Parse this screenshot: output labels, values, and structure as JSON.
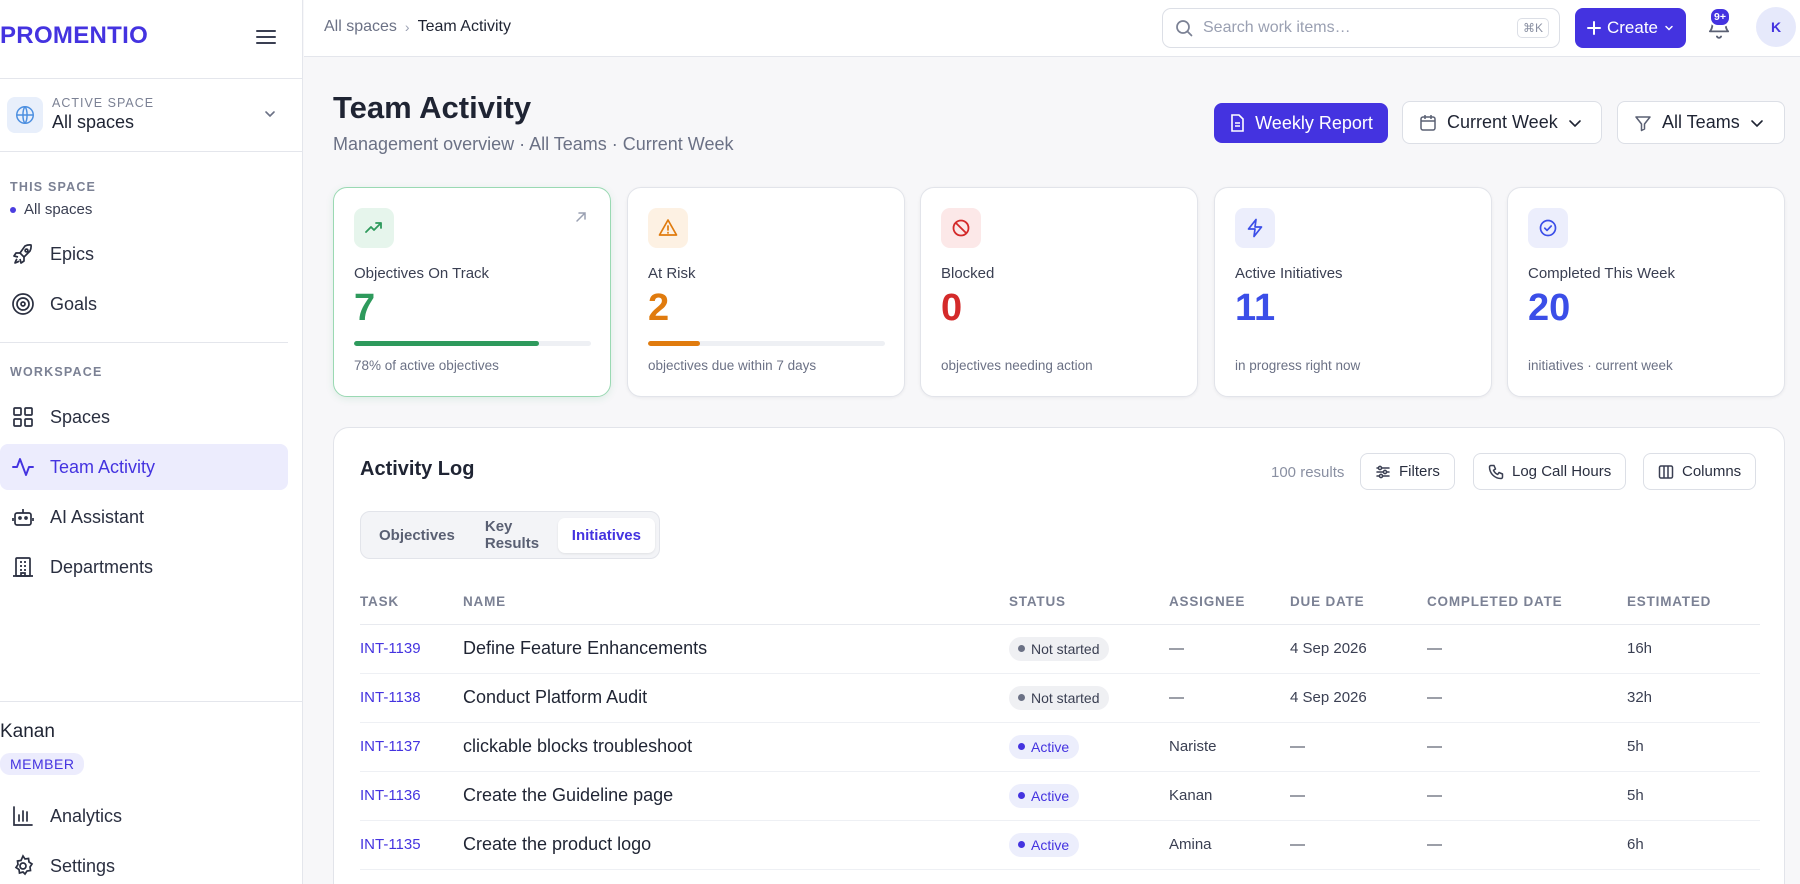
{
  "sidebar": {
    "brand": "PROMENTIO",
    "active_space_caption": "ACTIVE SPACE",
    "active_space_value": "All spaces",
    "this_space_caption": "THIS SPACE",
    "this_space_item": "All spaces",
    "space_items": [
      {
        "label": "Epics",
        "icon": "rocket-icon"
      },
      {
        "label": "Goals",
        "icon": "target-icon"
      }
    ],
    "workspace_caption": "WORKSPACE",
    "workspace_items": [
      {
        "label": "Spaces",
        "icon": "grid-icon"
      },
      {
        "label": "Team Activity",
        "icon": "activity-icon",
        "active": true
      },
      {
        "label": "AI Assistant",
        "icon": "robot-icon"
      },
      {
        "label": "Departments",
        "icon": "building-icon"
      }
    ],
    "user": {
      "name": "Kanan",
      "role": "MEMBER"
    },
    "bottom_items": [
      {
        "label": "Analytics",
        "icon": "bar-chart-icon"
      },
      {
        "label": "Settings",
        "icon": "gear-icon"
      }
    ]
  },
  "topbar": {
    "breadcrumb": [
      "All spaces",
      "Team Activity"
    ],
    "search_placeholder": "Search work items…",
    "search_shortcut": "⌘K",
    "create_label": "Create",
    "notification_badge": "9+",
    "avatar_initial": "K"
  },
  "page": {
    "title": "Team Activity",
    "subtitle": "Management overview · All Teams · Current Week",
    "weekly_report_label": "Weekly Report",
    "week_filter_label": "Current Week",
    "team_filter_label": "All Teams"
  },
  "stats": [
    {
      "label": "Objectives On Track",
      "value": "7",
      "sub": "78% of active objectives",
      "color": "#2e9a5c",
      "progress": 0.78
    },
    {
      "label": "At Risk",
      "value": "2",
      "sub": "objectives due within 7 days",
      "color": "#e07b0e",
      "progress": 0.22
    },
    {
      "label": "Blocked",
      "value": "0",
      "sub": "objectives needing action",
      "color": "#d42a2a"
    },
    {
      "label": "Active Initiatives",
      "value": "11",
      "sub": "in progress right now",
      "color": "#3b4ee8"
    },
    {
      "label": "Completed This Week",
      "value": "20",
      "sub": "initiatives · current week",
      "color": "#3b4ee8"
    }
  ],
  "activity_log": {
    "title": "Activity Log",
    "results": "100 results",
    "filters_label": "Filters",
    "log_call_label": "Log Call Hours",
    "columns_label": "Columns",
    "tabs": [
      "Objectives",
      "Key Results",
      "Initiatives"
    ],
    "active_tab": "Initiatives",
    "headers": [
      "TASK",
      "NAME",
      "STATUS",
      "ASSIGNEE",
      "DUE DATE",
      "COMPLETED DATE",
      "ESTIMATED"
    ],
    "rows": [
      {
        "task": "INT-1139",
        "name": "Define Feature Enhancements",
        "status": "Not started",
        "assignee": "—",
        "due": "4 Sep 2026",
        "completed": "—",
        "estimated": "16h"
      },
      {
        "task": "INT-1138",
        "name": "Conduct Platform Audit",
        "status": "Not started",
        "assignee": "—",
        "due": "4 Sep 2026",
        "completed": "—",
        "estimated": "32h"
      },
      {
        "task": "INT-1137",
        "name": "clickable blocks troubleshoot",
        "status": "Active",
        "assignee": "Nariste",
        "due": "—",
        "completed": "—",
        "estimated": "5h"
      },
      {
        "task": "INT-1136",
        "name": "Create the Guideline page",
        "status": "Active",
        "assignee": "Kanan",
        "due": "—",
        "completed": "—",
        "estimated": "5h"
      },
      {
        "task": "INT-1135",
        "name": "Create the product logo",
        "status": "Active",
        "assignee": "Amina",
        "due": "—",
        "completed": "—",
        "estimated": "6h"
      }
    ]
  }
}
